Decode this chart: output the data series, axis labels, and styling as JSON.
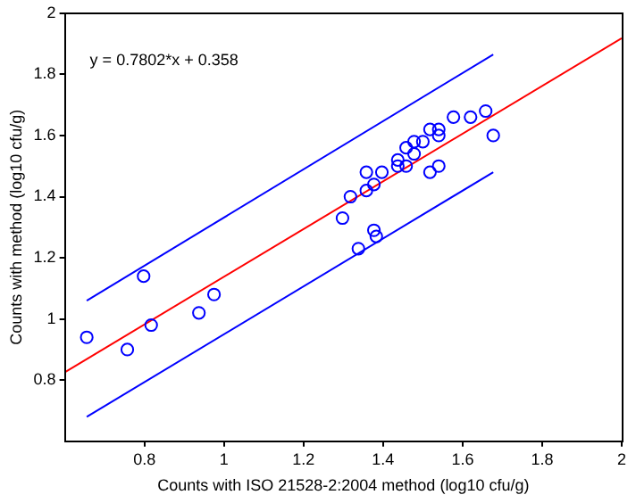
{
  "chart_data": {
    "type": "scatter",
    "xlabel": "Counts with ISO 21528-2:2004 method (log10 cfu/g)",
    "ylabel": "Counts with method (log10 cfu/g)",
    "annotations": [
      "y = 0.7802*x + 0.358"
    ],
    "xlim": [
      0.6,
      2
    ],
    "xticks": [
      0.8,
      1,
      1.2,
      1.4,
      1.6,
      1.8,
      2
    ],
    "ylim": [
      0.6,
      2
    ],
    "yticks": [
      0.8,
      1,
      1.2,
      1.4,
      1.6,
      1.8,
      2
    ],
    "grid": false,
    "legend": false,
    "marker": "circle",
    "series": [
      {
        "color": "#0000ff",
        "x": [
          1.298,
          1.318,
          1.358,
          1.358,
          1.377,
          1.397,
          1.437,
          1.437,
          1.458,
          1.458,
          1.478,
          1.478,
          1.5,
          1.518,
          1.518,
          1.54,
          1.54,
          1.54,
          1.577,
          1.62,
          1.658,
          1.677,
          1.377,
          1.383,
          1.338,
          0.798,
          0.975,
          0.937,
          0.817,
          0.655,
          0.757
        ],
        "values": [
          1.33,
          1.4,
          1.48,
          1.42,
          1.44,
          1.48,
          1.52,
          1.5,
          1.56,
          1.5,
          1.58,
          1.54,
          1.58,
          1.62,
          1.48,
          1.62,
          1.6,
          1.5,
          1.66,
          1.66,
          1.68,
          1.6,
          1.29,
          1.27,
          1.23,
          1.14,
          1.08,
          1.02,
          0.98,
          0.94,
          0.9
        ]
      },
      {
        "type": "line",
        "color": "#ff0000",
        "marker": "none",
        "x": [
          0.6,
          2
        ],
        "values": [
          0.826,
          1.918
        ]
      },
      {
        "type": "line",
        "color": "#0000ff",
        "marker": "none",
        "x": [
          0.655,
          1.677
        ],
        "values": [
          1.06,
          1.865
        ]
      },
      {
        "type": "line",
        "color": "#0000ff",
        "marker": "none",
        "x": [
          0.655,
          1.677
        ],
        "values": [
          0.68,
          1.48
        ]
      }
    ]
  }
}
